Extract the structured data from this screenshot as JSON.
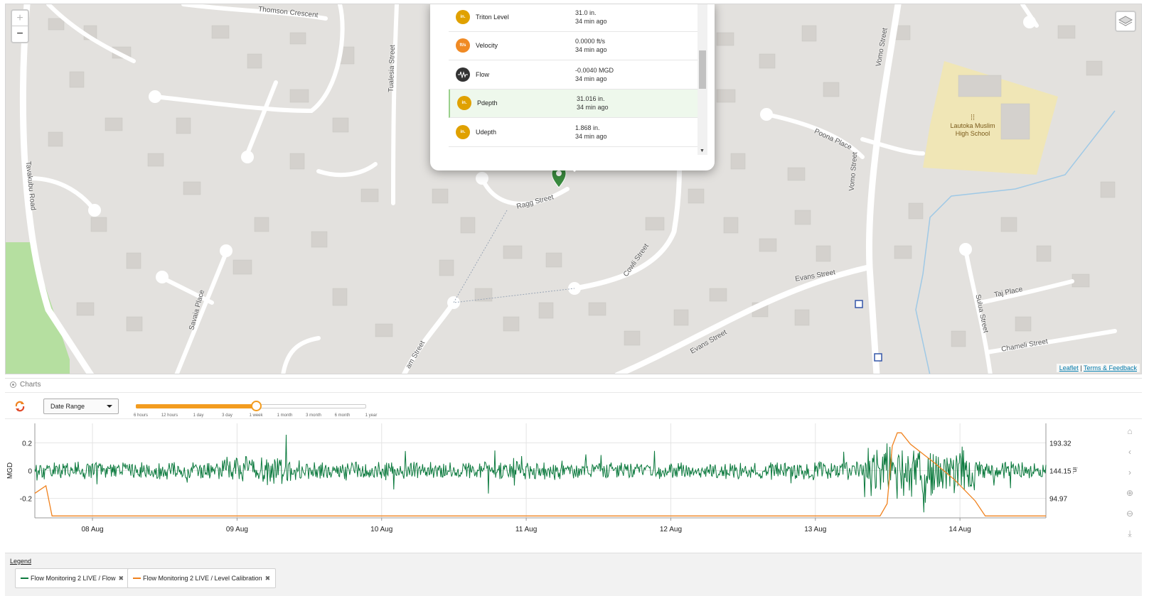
{
  "map": {
    "zoom_in": "+",
    "zoom_out": "−",
    "streets": [
      {
        "name": "Thomson Crescent"
      },
      {
        "name": "Tualesia Street"
      },
      {
        "name": "Tavakubu Road"
      },
      {
        "name": "Savaia Place"
      },
      {
        "name": "Ragg Street"
      },
      {
        "name": "Cowli Street"
      },
      {
        "name": "Evans Street"
      },
      {
        "name": "Evans Street"
      },
      {
        "name": "Poona Place"
      },
      {
        "name": "Vomo Street"
      },
      {
        "name": "Vomo Street"
      },
      {
        "name": "Taj Place"
      },
      {
        "name": "Sulua Street"
      },
      {
        "name": "Chameli Street"
      },
      {
        "name": "am Street"
      }
    ],
    "poi_name": "Lautoka Muslim\nHigh School",
    "marker_badge": "2",
    "attribution": {
      "leaflet": "Leaflet",
      "sep": " | ",
      "terms": "Terms & Feedback"
    }
  },
  "popup": {
    "rows": [
      {
        "icon_text": "in.",
        "icon_color": "#e0a100",
        "name": "Triton Level",
        "value": "31.0 in.",
        "time": "34 min ago",
        "selected": false
      },
      {
        "icon_text": "ft/s",
        "icon_color": "#f08a24",
        "name": "Velocity",
        "value": "0.0000 ft/s",
        "time": "34 min ago",
        "selected": false
      },
      {
        "icon_text": "wave-icon",
        "icon_color": "#333333",
        "name": "Flow",
        "value": "-0.0040 MGD",
        "time": "34 min ago",
        "selected": false
      },
      {
        "icon_text": "in.",
        "icon_color": "#e0a100",
        "name": "Pdepth",
        "value": "31.016 in.",
        "time": "34 min ago",
        "selected": true
      },
      {
        "icon_text": "in.",
        "icon_color": "#e0a100",
        "name": "Udepth",
        "value": "1.868 in.",
        "time": "34 min ago",
        "selected": false
      }
    ]
  },
  "charts": {
    "panel_title": "Charts",
    "date_select": "Date Range",
    "range_ticks": [
      "6 hours",
      "12 hours",
      "1 day",
      "3 day",
      "1 week",
      "1 month",
      "3 month",
      "6 month",
      "1 year"
    ],
    "selected_range_index": 4
  },
  "chart_data": {
    "type": "line",
    "x_labels": [
      "08 Aug",
      "09 Aug",
      "10 Aug",
      "11 Aug",
      "12 Aug",
      "13 Aug",
      "14 Aug"
    ],
    "y_left": {
      "label": "MGD",
      "ticks": [
        "0.2",
        "0",
        "-0.2"
      ],
      "range": [
        -0.34,
        0.34
      ]
    },
    "y_right": {
      "label": "in.",
      "ticks": [
        "193.32",
        "144.15",
        "94.97"
      ]
    },
    "grid": true,
    "series": [
      {
        "name": "Flow Monitoring 2 LIVE / Flow",
        "color": "#0c7a3e",
        "axis": "left",
        "y_approx_range": [
          -0.3,
          0.29
        ]
      },
      {
        "name": "Flow Monitoring 2 LIVE / Level Calibration",
        "color": "#f0821e",
        "axis": "right",
        "points": [
          [
            0.0,
            0.74
          ],
          [
            0.011,
            0.66
          ],
          [
            0.017,
            0.98
          ],
          [
            0.836,
            0.98
          ],
          [
            0.843,
            0.85
          ],
          [
            0.848,
            0.24
          ],
          [
            0.853,
            0.1
          ],
          [
            0.857,
            0.1
          ],
          [
            0.866,
            0.22
          ],
          [
            0.89,
            0.42
          ],
          [
            0.91,
            0.6
          ],
          [
            0.93,
            0.82
          ],
          [
            0.94,
            0.98
          ],
          [
            1.0,
            0.98
          ]
        ]
      }
    ]
  },
  "legend": {
    "title": "Legend",
    "items": [
      {
        "label": "Flow Monitoring 2 LIVE / Flow",
        "color": "#0c7a3e",
        "close": "✖"
      },
      {
        "label": "Flow Monitoring 2 LIVE / Level Calibration",
        "color": "#f0821e",
        "close": "✖"
      }
    ]
  }
}
